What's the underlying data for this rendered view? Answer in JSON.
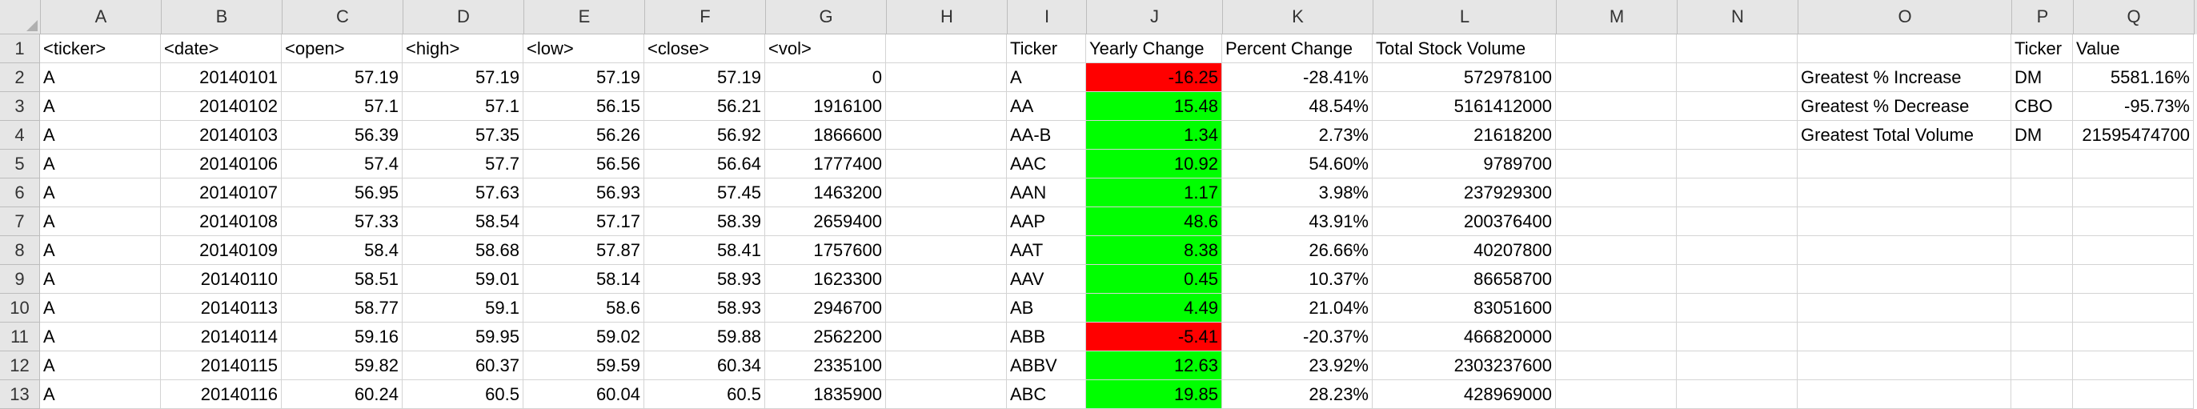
{
  "columns": [
    "A",
    "B",
    "C",
    "D",
    "E",
    "F",
    "G",
    "H",
    "I",
    "J",
    "K",
    "L",
    "M",
    "N",
    "O",
    "P",
    "Q"
  ],
  "colors": {
    "positive_fill": "#00ff00",
    "negative_fill": "#ff0000",
    "header_bg": "#e6e6e6",
    "gridline": "#d4d4d4"
  },
  "rows": [
    {
      "num": "1",
      "A": "<ticker>",
      "B": "<date>",
      "C": "<open>",
      "D": "<high>",
      "E": "<low>",
      "F": "<close>",
      "G": "<vol>",
      "I": "Ticker",
      "J": "Yearly Change",
      "K": "Percent Change",
      "L": "Total Stock Volume",
      "P": "Ticker",
      "Q": "Value"
    },
    {
      "num": "2",
      "A": "A",
      "B": "20140101",
      "C": "57.19",
      "D": "57.19",
      "E": "57.19",
      "F": "57.19",
      "G": "0",
      "I": "A",
      "J": "-16.25",
      "K": "-28.41%",
      "L": "572978100",
      "O": "Greatest % Increase",
      "P": "DM",
      "Q": "5581.16%"
    },
    {
      "num": "3",
      "A": "A",
      "B": "20140102",
      "C": "57.1",
      "D": "57.1",
      "E": "56.15",
      "F": "56.21",
      "G": "1916100",
      "I": "AA",
      "J": "15.48",
      "K": "48.54%",
      "L": "5161412000",
      "O": "Greatest % Decrease",
      "P": "CBO",
      "Q": "-95.73%"
    },
    {
      "num": "4",
      "A": "A",
      "B": "20140103",
      "C": "56.39",
      "D": "57.35",
      "E": "56.26",
      "F": "56.92",
      "G": "1866600",
      "I": "AA-B",
      "J": "1.34",
      "K": "2.73%",
      "L": "21618200",
      "O": "Greatest Total Volume",
      "P": "DM",
      "Q": "21595474700"
    },
    {
      "num": "5",
      "A": "A",
      "B": "20140106",
      "C": "57.4",
      "D": "57.7",
      "E": "56.56",
      "F": "56.64",
      "G": "1777400",
      "I": "AAC",
      "J": "10.92",
      "K": "54.60%",
      "L": "9789700"
    },
    {
      "num": "6",
      "A": "A",
      "B": "20140107",
      "C": "56.95",
      "D": "57.63",
      "E": "56.93",
      "F": "57.45",
      "G": "1463200",
      "I": "AAN",
      "J": "1.17",
      "K": "3.98%",
      "L": "237929300"
    },
    {
      "num": "7",
      "A": "A",
      "B": "20140108",
      "C": "57.33",
      "D": "58.54",
      "E": "57.17",
      "F": "58.39",
      "G": "2659400",
      "I": "AAP",
      "J": "48.6",
      "K": "43.91%",
      "L": "200376400"
    },
    {
      "num": "8",
      "A": "A",
      "B": "20140109",
      "C": "58.4",
      "D": "58.68",
      "E": "57.87",
      "F": "58.41",
      "G": "1757600",
      "I": "AAT",
      "J": "8.38",
      "K": "26.66%",
      "L": "40207800"
    },
    {
      "num": "9",
      "A": "A",
      "B": "20140110",
      "C": "58.51",
      "D": "59.01",
      "E": "58.14",
      "F": "58.93",
      "G": "1623300",
      "I": "AAV",
      "J": "0.45",
      "K": "10.37%",
      "L": "86658700"
    },
    {
      "num": "10",
      "A": "A",
      "B": "20140113",
      "C": "58.77",
      "D": "59.1",
      "E": "58.6",
      "F": "58.93",
      "G": "2946700",
      "I": "AB",
      "J": "4.49",
      "K": "21.04%",
      "L": "83051600"
    },
    {
      "num": "11",
      "A": "A",
      "B": "20140114",
      "C": "59.16",
      "D": "59.95",
      "E": "59.02",
      "F": "59.88",
      "G": "2562200",
      "I": "ABB",
      "J": "-5.41",
      "K": "-20.37%",
      "L": "466820000"
    },
    {
      "num": "12",
      "A": "A",
      "B": "20140115",
      "C": "59.82",
      "D": "60.37",
      "E": "59.59",
      "F": "60.34",
      "G": "2335100",
      "I": "ABBV",
      "J": "12.63",
      "K": "23.92%",
      "L": "2303237600"
    },
    {
      "num": "13",
      "A": "A",
      "B": "20140116",
      "C": "60.24",
      "D": "60.5",
      "E": "60.04",
      "F": "60.5",
      "G": "1835900",
      "I": "ABC",
      "J": "19.85",
      "K": "28.23%",
      "L": "428969000"
    }
  ]
}
